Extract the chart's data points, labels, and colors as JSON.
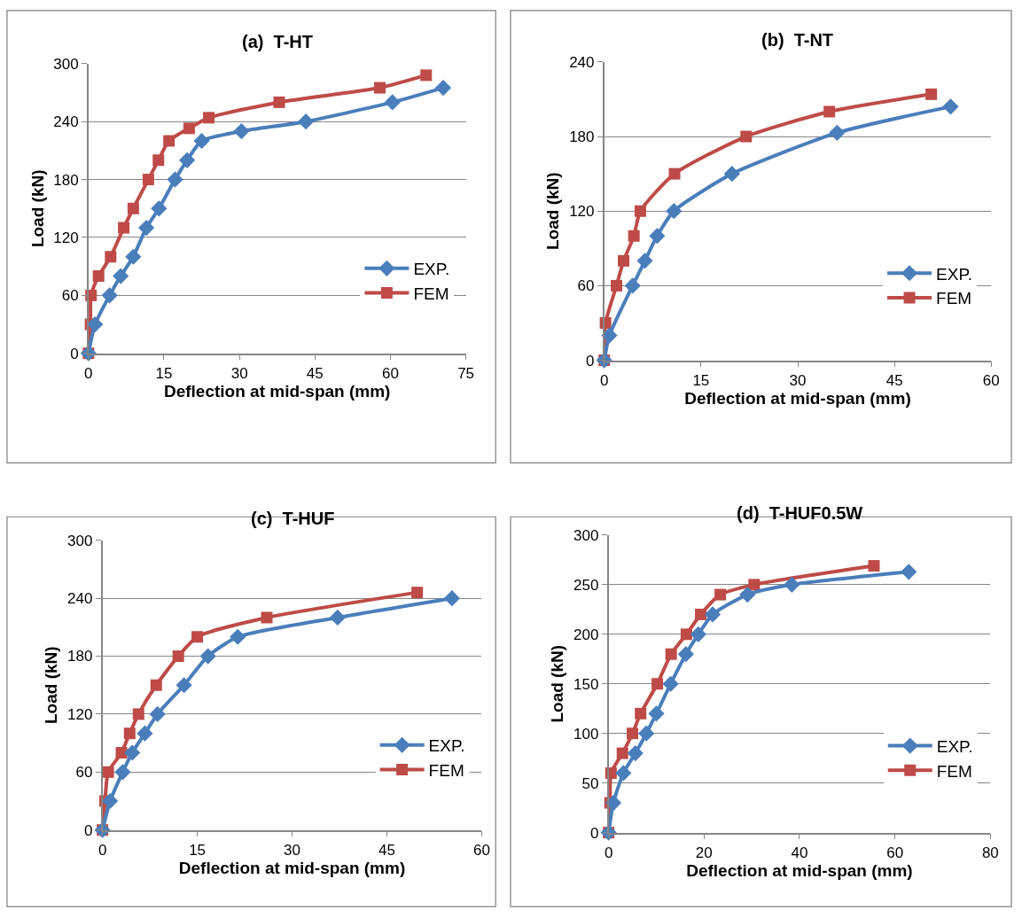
{
  "chart_data": [
    {
      "type": "line",
      "title": "(a)  T-HT",
      "xlabel": "Deflection at mid-span (mm)",
      "ylabel": "Load (kN)",
      "xlim": [
        0,
        75
      ],
      "xticks": [
        0,
        15,
        30,
        45,
        60,
        75
      ],
      "ylim": [
        0,
        300
      ],
      "yticks": [
        0,
        60,
        120,
        180,
        240,
        300
      ],
      "grid": "y",
      "legend": "bottom right",
      "line_style": "solid",
      "series": [
        {
          "name": "EXP.",
          "color": "#4a7ebb",
          "marker": "diamond",
          "x": [
            0,
            1.3,
            4.2,
            6.4,
            8.9,
            11.5,
            14,
            17.2,
            19.6,
            22.5,
            30.4,
            43.2,
            60.4,
            70.5
          ],
          "values": [
            0,
            30,
            60,
            80,
            100,
            130,
            150,
            180,
            200,
            220,
            230,
            240,
            260,
            275
          ]
        },
        {
          "name": "FEM",
          "color": "#be4b48",
          "marker": "square",
          "x": [
            0,
            0.4,
            0.5,
            2,
            4.4,
            7,
            8.9,
            11.9,
            13.9,
            16,
            20,
            23.9,
            37.9,
            57.9,
            67.1
          ],
          "values": [
            0,
            30,
            60,
            80,
            100,
            130,
            150,
            180,
            200,
            220,
            233,
            244,
            260,
            275,
            288
          ]
        }
      ]
    },
    {
      "type": "line",
      "title": "(b)  T-NT",
      "xlabel": "Deflection at mid-span (mm)",
      "ylabel": "Load (kN)",
      "xlim": [
        0,
        60
      ],
      "xticks": [
        0,
        15,
        30,
        45,
        60
      ],
      "ylim": [
        0,
        240
      ],
      "yticks": [
        0,
        60,
        120,
        180,
        240
      ],
      "grid": "y",
      "legend": "bottom right",
      "line_style": "solid",
      "series": [
        {
          "name": "EXP.",
          "color": "#4a7ebb",
          "marker": "diamond",
          "x": [
            0,
            0.8,
            4.4,
            6.3,
            8.2,
            10.8,
            19.8,
            36.1,
            53.7
          ],
          "values": [
            0,
            20,
            60,
            80,
            100,
            120,
            150,
            183,
            204
          ]
        },
        {
          "name": "FEM",
          "color": "#be4b48",
          "marker": "square",
          "x": [
            0,
            0.2,
            1.9,
            3,
            4.6,
            5.6,
            10.9,
            22,
            34.9,
            50.7
          ],
          "values": [
            0,
            30,
            60,
            80,
            100,
            120,
            150,
            180,
            200,
            214
          ]
        }
      ]
    },
    {
      "type": "line",
      "title": "(c)  T-HUF",
      "xlabel": "Deflection at mid-span (mm)",
      "ylabel": "Load (kN)",
      "xlim": [
        0,
        60
      ],
      "xticks": [
        0,
        15,
        30,
        45,
        60
      ],
      "ylim": [
        0,
        300
      ],
      "yticks": [
        0,
        60,
        120,
        180,
        240,
        300
      ],
      "grid": "y",
      "legend": "bottom right",
      "line_style": "solid",
      "series": [
        {
          "name": "EXP.",
          "color": "#4a7ebb",
          "marker": "diamond",
          "x": [
            0,
            1.2,
            3.2,
            4.7,
            6.7,
            8.7,
            12.9,
            16.7,
            21.4,
            37.2,
            55.3
          ],
          "values": [
            0,
            30,
            60,
            80,
            100,
            120,
            150,
            180,
            200,
            220,
            240
          ]
        },
        {
          "name": "FEM",
          "color": "#be4b48",
          "marker": "square",
          "x": [
            0,
            0.4,
            0.9,
            3,
            4.3,
            5.7,
            8.5,
            12,
            15,
            26,
            49.8
          ],
          "values": [
            0,
            30,
            60,
            80,
            100,
            120,
            150,
            180,
            200,
            220,
            246
          ]
        }
      ]
    },
    {
      "type": "line",
      "title": "(d)  T-HUF0.5W",
      "xlabel": "Deflection at mid-span (mm)",
      "ylabel": "Load (kN)",
      "xlim": [
        0,
        80
      ],
      "xticks": [
        0,
        20,
        40,
        60,
        80
      ],
      "ylim": [
        0,
        300
      ],
      "yticks": [
        0,
        50,
        100,
        150,
        200,
        250,
        300
      ],
      "grid": "y",
      "legend": "bottom right",
      "line_style": "solid",
      "series": [
        {
          "name": "EXP.",
          "color": "#4a7ebb",
          "marker": "diamond",
          "x": [
            0,
            1,
            3.1,
            5.6,
            7.9,
            10,
            13,
            16.2,
            18.8,
            21.8,
            29.1,
            38.4,
            62.9
          ],
          "values": [
            0,
            30,
            60,
            80,
            100,
            120,
            150,
            180,
            200,
            220,
            240,
            250,
            263
          ]
        },
        {
          "name": "FEM",
          "color": "#be4b48",
          "marker": "square",
          "x": [
            0,
            0.3,
            0.5,
            2.9,
            5,
            6.7,
            10.2,
            13.1,
            16.3,
            19.3,
            23.4,
            30.5,
            55.6
          ],
          "values": [
            0,
            30,
            60,
            80,
            100,
            120,
            150,
            180,
            200,
            220,
            240,
            250,
            269
          ]
        }
      ]
    }
  ]
}
